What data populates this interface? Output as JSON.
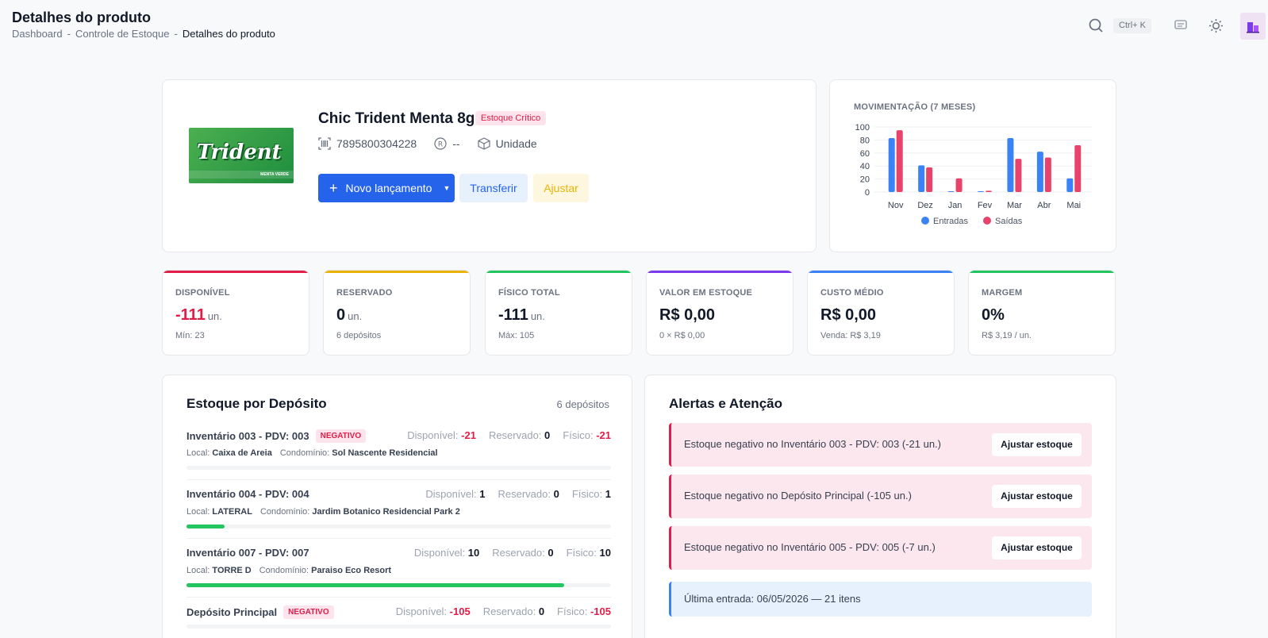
{
  "header": {
    "title": "Detalhes do produto",
    "breadcrumb": [
      "Dashboard",
      "Controle de Estoque",
      "Detalhes do produto"
    ],
    "search_shortcut": "Ctrl+ K"
  },
  "product": {
    "name": "Chic Trident Menta 8g",
    "status_badge": "Estoque Crítico",
    "barcode": "7895800304228",
    "brand": "--",
    "unit": "Unidade",
    "image_brand_text": "Trident",
    "image_flavor_text": "MENTA VERDE",
    "actions": {
      "new_entry": "Novo lançamento",
      "transfer": "Transferir",
      "adjust": "Ajustar"
    }
  },
  "chart_data": {
    "type": "bar",
    "title": "MOVIMENTAÇÃO (7 MESES)",
    "categories": [
      "Nov",
      "Dez",
      "Jan",
      "Fev",
      "Mar",
      "Abr",
      "Mai"
    ],
    "series": [
      {
        "name": "Entradas",
        "color": "#3b82f6",
        "values": [
          83,
          41,
          1,
          1,
          83,
          62,
          21
        ]
      },
      {
        "name": "Saídas",
        "color": "#e8436a",
        "values": [
          95,
          38,
          21,
          2,
          51,
          53,
          72
        ]
      }
    ],
    "ylim": [
      0,
      100
    ],
    "yticks": [
      0,
      20,
      40,
      60,
      80,
      100
    ],
    "grid": true,
    "legend": "bottom"
  },
  "kpis": [
    {
      "label": "DISPONÍVEL",
      "value": "-111",
      "unit": "un.",
      "sub": "Mín: 23",
      "color": "#e11d48",
      "value_color": "#e11d48"
    },
    {
      "label": "RESERVADO",
      "value": "0",
      "unit": "un.",
      "sub": "6 depósitos",
      "color": "#eab308",
      "value_color": "#111827"
    },
    {
      "label": "FÍSICO TOTAL",
      "value": "-111",
      "unit": "un.",
      "sub": "Máx: 105",
      "color": "#22c55e",
      "value_color": "#111827"
    },
    {
      "label": "VALOR EM ESTOQUE",
      "value": "R$ 0,00",
      "unit": "",
      "sub": "0 × R$ 0,00",
      "color": "#7c3aed",
      "value_color": "#111827"
    },
    {
      "label": "CUSTO MÉDIO",
      "value": "R$ 0,00",
      "unit": "",
      "sub": "Venda: R$ 3,19",
      "color": "#3b82f6",
      "value_color": "#111827"
    },
    {
      "label": "MARGEM",
      "value": "0%",
      "unit": "",
      "sub": "R$ 3,19 / un.",
      "color": "#22c55e",
      "value_color": "#111827"
    }
  ],
  "deposits": {
    "title": "Estoque por Depósito",
    "count": "6 depósitos",
    "labels": {
      "available": "Disponível:",
      "reserved": "Reservado:",
      "physical": "Físico:",
      "local": "Local:",
      "condo": "Condomínio:"
    },
    "items": [
      {
        "name": "Inventário 003 - PDV: 003",
        "badge": "NEGATIVO",
        "available": "-21",
        "reserved": "0",
        "physical": "-21",
        "local": "Caixa de Areia",
        "condo": "Sol Nascente Residencial",
        "fill": 0
      },
      {
        "name": "Inventário 004 - PDV: 004",
        "badge": "",
        "available": "1",
        "reserved": "0",
        "physical": "1",
        "local": "LATERAL",
        "condo": "Jardim Botanico Residencial Park 2",
        "fill": 0.09
      },
      {
        "name": "Inventário 007 - PDV: 007",
        "badge": "",
        "available": "10",
        "reserved": "0",
        "physical": "10",
        "local": "TORRE D",
        "condo": "Paraiso Eco Resort",
        "fill": 0.89
      },
      {
        "name": "Depósito Principal",
        "badge": "NEGATIVO",
        "available": "-105",
        "reserved": "0",
        "physical": "-105",
        "local": "",
        "condo": "",
        "fill": 0
      }
    ]
  },
  "alerts": {
    "title": "Alertas e Atenção",
    "button_label": "Ajustar estoque",
    "items": [
      "Estoque negativo no Inventário 003 - PDV: 003 (-21 un.)",
      "Estoque negativo no Depósito Principal (-105 un.)",
      "Estoque negativo no Inventário 005 - PDV: 005 (-7 un.)"
    ],
    "info": "Última entrada: 06/05/2026 — 21 itens"
  }
}
